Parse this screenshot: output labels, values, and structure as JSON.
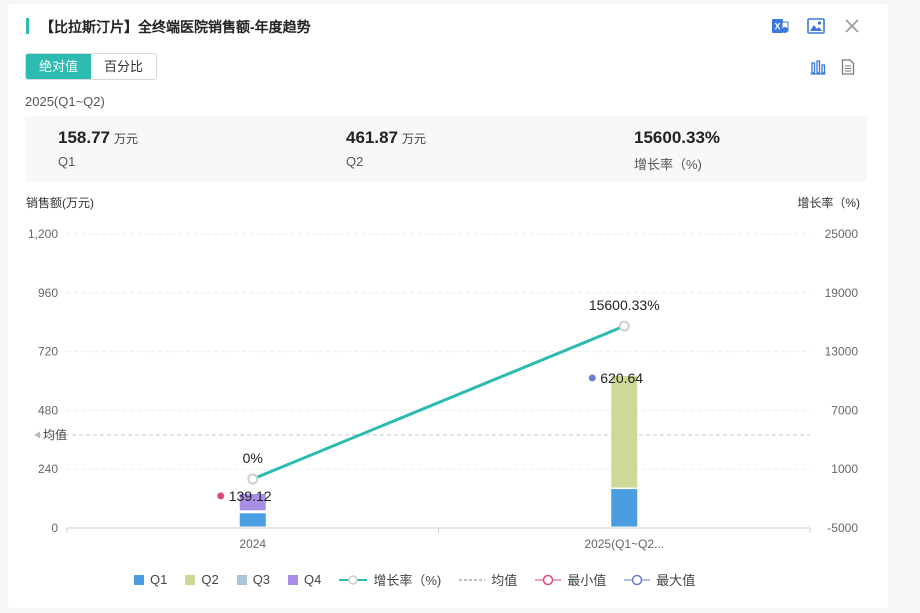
{
  "header": {
    "title": "【比拉斯汀片】全终端医院销售额-年度趋势",
    "icons": [
      "excel-export-icon",
      "image-export-icon",
      "close-icon"
    ]
  },
  "tabs": [
    {
      "label": "绝对值",
      "active": true
    },
    {
      "label": "百分比",
      "active": false
    }
  ],
  "view_icons": [
    "bar-chart-icon",
    "table-view-icon"
  ],
  "period": "2025(Q1~Q2)",
  "summary": [
    {
      "value": "158.77",
      "unit": "万元",
      "label": "Q1"
    },
    {
      "value": "461.87",
      "unit": "万元",
      "label": "Q2"
    },
    {
      "value": "15600.33%",
      "unit": "",
      "label": "增长率（%)"
    }
  ],
  "colors": {
    "accent": "#2bbbb1",
    "q1": "#4a9de0",
    "q2": "#cdd996",
    "q3": "#a8c5dc",
    "q4": "#a98ee8",
    "growth": "#2bbbb1",
    "min": "#e0457f",
    "max": "#6a7fd0"
  },
  "chart_data": {
    "type": "bar",
    "stacked": true,
    "categories": [
      "2024",
      "2025(Q1~Q2..."
    ],
    "series": [
      {
        "name": "Q1",
        "values": [
          60,
          158.77
        ]
      },
      {
        "name": "Q2",
        "values": [
          0,
          461.87
        ]
      },
      {
        "name": "Q3",
        "values": [
          6,
          0
        ]
      },
      {
        "name": "Q4",
        "values": [
          73.12,
          0
        ]
      }
    ],
    "line": {
      "name": "增长率（%)",
      "values": [
        0,
        15600.33
      ],
      "labels": [
        "0%",
        "15600.33%"
      ]
    },
    "avg_label": "均值",
    "avg_value": 380,
    "min": {
      "category_index": 0,
      "value": 139.12,
      "label": "139.12"
    },
    "max": {
      "category_index": 1,
      "value": 620.64,
      "label": "620.64"
    },
    "ylabel_left": "销售额(万元)",
    "ylabel_right": "增长率（%)",
    "ylim_left": [
      0,
      1200
    ],
    "ylim_right": [
      -5000,
      25000
    ],
    "yticks_left": [
      "0",
      "240",
      "480",
      "720",
      "960",
      "1,200"
    ],
    "yticks_right": [
      "-5000",
      "1000",
      "7000",
      "13000",
      "19000",
      "25000"
    ],
    "legend": [
      "Q1",
      "Q2",
      "Q3",
      "Q4",
      "增长率（%)",
      "均值",
      "最小值",
      "最大值"
    ],
    "legend_position": "bottom",
    "grid": true
  }
}
